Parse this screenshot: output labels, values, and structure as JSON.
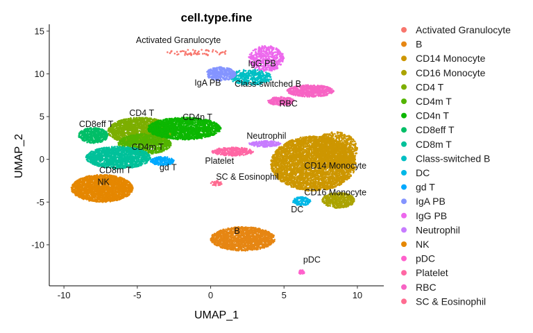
{
  "chart_data": {
    "type": "scatter",
    "title": "cell.type.fine",
    "xlabel": "UMAP_1",
    "ylabel": "UMAP_2",
    "xlim": [
      -11,
      11.8
    ],
    "ylim": [
      -14.8,
      15.8
    ],
    "xticks": [
      -10,
      -5,
      0,
      5,
      10
    ],
    "yticks": [
      -10,
      -5,
      0,
      5,
      10,
      15
    ],
    "legend_position": "right",
    "series": [
      {
        "name": "Activated Granulocyte",
        "color": "#F8766D",
        "label": "Activated Granulocyte",
        "label_xy": [
          -2.2,
          13.6
        ],
        "blobs": [
          {
            "cx": -0.8,
            "cy": 12.5,
            "rx": 2.2,
            "ry": 0.35,
            "n": 60
          }
        ]
      },
      {
        "name": "B",
        "color": "#E68613",
        "label": "B",
        "label_xy": [
          1.8,
          -8.7
        ],
        "blobs": [
          {
            "cx": 2.2,
            "cy": -9.3,
            "rx": 2.2,
            "ry": 1.4,
            "n": 1600
          }
        ]
      },
      {
        "name": "CD14 Monocyte",
        "color": "#CD9600",
        "label": "CD14 Monocyte",
        "label_xy": [
          8.5,
          -1.1
        ],
        "blobs": [
          {
            "cx": 7.0,
            "cy": -0.5,
            "rx": 2.9,
            "ry": 3.2,
            "n": 4200
          },
          {
            "cx": 8.5,
            "cy": 1.2,
            "rx": 1.5,
            "ry": 2.0,
            "n": 900
          }
        ]
      },
      {
        "name": "CD16 Monocyte",
        "color": "#ABA300",
        "label": "CD16 Monocyte",
        "label_xy": [
          8.5,
          -4.2
        ],
        "blobs": [
          {
            "cx": 8.7,
            "cy": -4.8,
            "rx": 1.1,
            "ry": 0.9,
            "n": 500
          }
        ]
      },
      {
        "name": "CD4 T",
        "color": "#7CAE00",
        "label": "CD4 T",
        "label_xy": [
          -4.7,
          5.1
        ],
        "blobs": [
          {
            "cx": -4.8,
            "cy": 3.3,
            "rx": 2.2,
            "ry": 1.6,
            "n": 1800
          }
        ]
      },
      {
        "name": "CD4m T",
        "color": "#53B400",
        "label": "CD4m T",
        "label_xy": [
          -4.3,
          1.1
        ],
        "blobs": [
          {
            "cx": -4.5,
            "cy": 1.8,
            "rx": 1.8,
            "ry": 1.2,
            "n": 900
          }
        ]
      },
      {
        "name": "CD4n T",
        "color": "#0CB702",
        "label": "CD4n T",
        "label_xy": [
          -0.9,
          4.6
        ],
        "blobs": [
          {
            "cx": -1.8,
            "cy": 3.6,
            "rx": 2.5,
            "ry": 1.3,
            "n": 1800
          }
        ]
      },
      {
        "name": "CD8eff T",
        "color": "#00BE67",
        "label": "CD8eff T",
        "label_xy": [
          -7.8,
          3.8
        ],
        "blobs": [
          {
            "cx": -8.0,
            "cy": 2.8,
            "rx": 1.0,
            "ry": 0.9,
            "n": 500
          }
        ]
      },
      {
        "name": "CD8m T",
        "color": "#00C19A",
        "label": "CD8m T",
        "label_xy": [
          -6.5,
          -1.6
        ],
        "blobs": [
          {
            "cx": -6.3,
            "cy": 0.2,
            "rx": 2.2,
            "ry": 1.3,
            "n": 1500
          }
        ]
      },
      {
        "name": "Class-switched B",
        "color": "#00BFC4",
        "label": "Class-switched B",
        "label_xy": [
          3.9,
          8.5
        ],
        "blobs": [
          {
            "cx": 2.7,
            "cy": 9.6,
            "rx": 1.5,
            "ry": 0.9,
            "n": 400
          }
        ]
      },
      {
        "name": "DC",
        "color": "#00B8E7",
        "label": "DC",
        "label_xy": [
          5.9,
          -6.2
        ],
        "blobs": [
          {
            "cx": 6.2,
            "cy": -4.9,
            "rx": 0.6,
            "ry": 0.5,
            "n": 140
          }
        ]
      },
      {
        "name": "gd T",
        "color": "#00A9FF",
        "label": "gd T",
        "label_xy": [
          -2.9,
          -1.3
        ],
        "blobs": [
          {
            "cx": -3.3,
            "cy": -0.2,
            "rx": 0.8,
            "ry": 0.5,
            "n": 200
          }
        ]
      },
      {
        "name": "IgA PB",
        "color": "#8494FF",
        "label": "IgA PB",
        "label_xy": [
          -0.2,
          8.6
        ],
        "blobs": [
          {
            "cx": 0.7,
            "cy": 10.0,
            "rx": 1.0,
            "ry": 0.8,
            "n": 350
          }
        ]
      },
      {
        "name": "IgG PB",
        "color": "#ED68ED",
        "label": "IgG PB",
        "label_xy": [
          3.5,
          10.9
        ],
        "blobs": [
          {
            "cx": 3.8,
            "cy": 11.8,
            "rx": 1.2,
            "ry": 1.5,
            "n": 500
          }
        ]
      },
      {
        "name": "Neutrophil",
        "color": "#C77CFF",
        "label": "Neutrophil",
        "label_xy": [
          3.8,
          2.4
        ],
        "blobs": [
          {
            "cx": 3.7,
            "cy": 1.8,
            "rx": 1.1,
            "ry": 0.35,
            "n": 200
          }
        ]
      },
      {
        "name": "NK",
        "color": "#E58700",
        "label": "NK",
        "label_xy": [
          -7.3,
          -3.0
        ],
        "blobs": [
          {
            "cx": -7.4,
            "cy": -3.4,
            "rx": 2.1,
            "ry": 1.6,
            "n": 2300
          }
        ]
      },
      {
        "name": "pDC",
        "color": "#FF61CC",
        "label": "pDC",
        "label_xy": [
          6.9,
          -12.1
        ],
        "blobs": [
          {
            "cx": 6.2,
            "cy": -13.2,
            "rx": 0.2,
            "ry": 0.25,
            "n": 25
          }
        ]
      },
      {
        "name": "Platelet",
        "color": "#FF67A4",
        "label": "Platelet",
        "label_xy": [
          0.6,
          -0.5
        ],
        "blobs": [
          {
            "cx": 1.5,
            "cy": 0.9,
            "rx": 1.4,
            "ry": 0.5,
            "n": 300
          }
        ]
      },
      {
        "name": "RBC",
        "color": "#F764C4",
        "label": "RBC",
        "label_xy": [
          5.3,
          6.2
        ],
        "blobs": [
          {
            "cx": 6.8,
            "cy": 8.0,
            "rx": 1.6,
            "ry": 0.7,
            "n": 600
          },
          {
            "cx": 4.8,
            "cy": 6.8,
            "rx": 0.9,
            "ry": 0.5,
            "n": 200
          }
        ]
      },
      {
        "name": "SC & Eosinophil",
        "color": "#FF6C91",
        "label": "SC & Eosinophil",
        "label_xy": [
          2.5,
          -2.4
        ],
        "blobs": [
          {
            "cx": 0.4,
            "cy": -2.8,
            "rx": 0.4,
            "ry": 0.3,
            "n": 60
          }
        ]
      }
    ]
  }
}
